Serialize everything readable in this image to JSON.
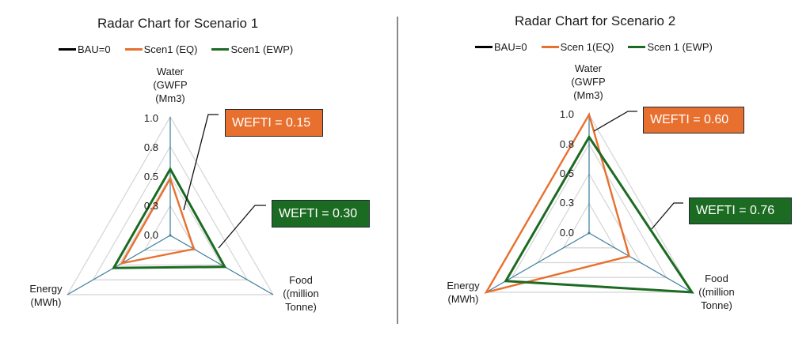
{
  "colors": {
    "bau": "#000000",
    "eq": "#e8702f",
    "ewp": "#1c6b22",
    "axis": "#3a7d9c",
    "grid": "#d4d4d4",
    "divider": "#8a8a8a",
    "callout_orange_bg": "#e8702f",
    "callout_green_bg": "#1c6b22"
  },
  "charts": [
    {
      "title": "Radar Chart for Scenario 1",
      "legend": [
        "BAU=0",
        "Scen1 (EQ)",
        "Scen1 (EWP)"
      ],
      "axes": {
        "water": [
          "Water",
          "(GWFP",
          "(Mm3)"
        ],
        "energy": [
          "Energy",
          "(MWh)"
        ],
        "food": [
          "Food",
          "((million",
          "Tonne)"
        ]
      },
      "ticks": [
        "0.0",
        "0.3",
        "0.5",
        "0.8",
        "1.0"
      ],
      "callouts": {
        "eq": "WEFTI = 0.15",
        "ewp": "WEFTI = 0.30"
      }
    },
    {
      "title": "Radar Chart for Scenario 2",
      "legend": [
        "BAU=0",
        "Scen 1(EQ)",
        "Scen 1 (EWP)"
      ],
      "axes": {
        "water": [
          "Water",
          "(GWFP",
          "(Mm3)"
        ],
        "energy": [
          "Energy",
          "(MWh)"
        ],
        "food": [
          "Food",
          "((million",
          "Tonne)"
        ]
      },
      "ticks": [
        "0.0",
        "0.3",
        "0.5",
        "0.8",
        "1.0"
      ],
      "callouts": {
        "eq": "WEFTI = 0.60",
        "ewp": "WEFTI = 0.76"
      }
    }
  ],
  "chart_data": [
    {
      "type": "radar",
      "title": "Radar Chart for Scenario 1",
      "categories": [
        "Water (GWFP (Mm3)",
        "Food ((million Tonne)",
        "Energy (MWh)"
      ],
      "series": [
        {
          "name": "BAU=0",
          "values": [
            0,
            0,
            0
          ]
        },
        {
          "name": "Scen1 (EQ)",
          "values": [
            0.48,
            0.23,
            0.47
          ]
        },
        {
          "name": "Scen1 (EWP)",
          "values": [
            0.56,
            0.53,
            0.55
          ]
        }
      ],
      "rlim": [
        0,
        1
      ],
      "ring_step": 0.25,
      "tick_labels": [
        "0.0",
        "0.3",
        "0.5",
        "0.8",
        "1.0"
      ],
      "legend_position": "top",
      "annotations": [
        {
          "text": "WEFTI = 0.15",
          "series": "Scen1 (EQ)"
        },
        {
          "text": "WEFTI = 0.30",
          "series": "Scen1 (EWP)"
        }
      ]
    },
    {
      "type": "radar",
      "title": "Radar Chart for Scenario 2",
      "categories": [
        "Water (GWFP (Mm3)",
        "Food ((million Tonne)",
        "Energy (MWh)"
      ],
      "series": [
        {
          "name": "BAU=0",
          "values": [
            0,
            0,
            0
          ]
        },
        {
          "name": "Scen 1(EQ)",
          "values": [
            1.0,
            0.39,
            1.0
          ]
        },
        {
          "name": "Scen 1 (EWP)",
          "values": [
            0.81,
            1.0,
            0.81
          ]
        }
      ],
      "rlim": [
        0,
        1
      ],
      "ring_step": 0.25,
      "tick_labels": [
        "0.0",
        "0.3",
        "0.5",
        "0.8",
        "1.0"
      ],
      "legend_position": "top",
      "annotations": [
        {
          "text": "WEFTI = 0.60",
          "series": "Scen 1(EQ)"
        },
        {
          "text": "WEFTI = 0.76",
          "series": "Scen 1 (EWP)"
        }
      ]
    }
  ]
}
